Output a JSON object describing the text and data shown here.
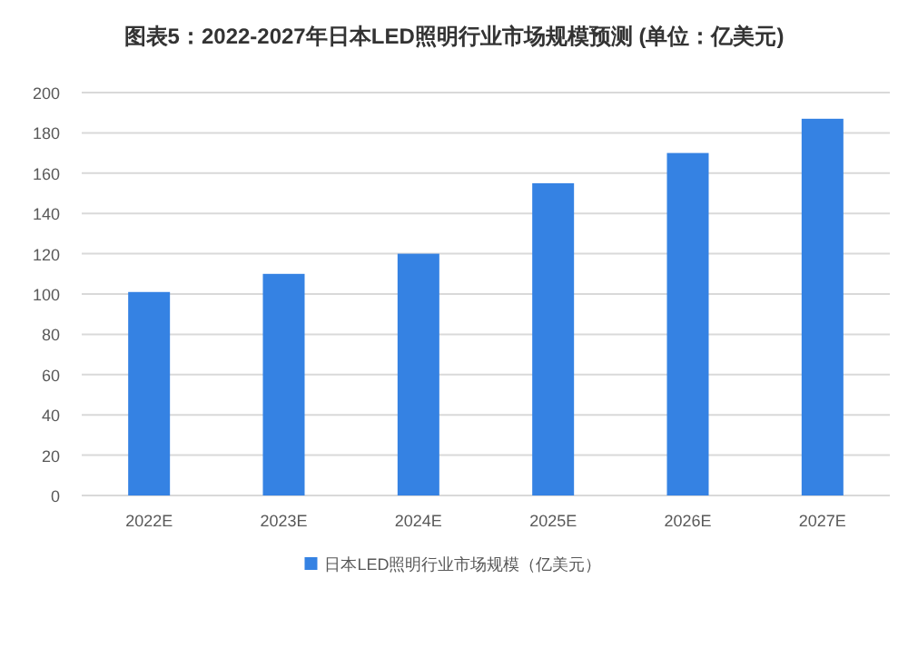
{
  "chart_data": {
    "type": "bar",
    "title": "图表5：2022-2027年日本LED照明行业市场规模预测 (单位：亿美元)",
    "categories": [
      "2022E",
      "2023E",
      "2024E",
      "2025E",
      "2026E",
      "2027E"
    ],
    "series": [
      {
        "name": "日本LED照明行业市场规模（亿美元）",
        "color": "#3582e3",
        "values": [
          101,
          110,
          120,
          155,
          170,
          187
        ]
      }
    ],
    "ylim": [
      0,
      200
    ],
    "yticks": [
      0,
      20,
      40,
      60,
      80,
      100,
      120,
      140,
      160,
      180,
      200
    ],
    "grid": "y",
    "legend": "bottom"
  }
}
